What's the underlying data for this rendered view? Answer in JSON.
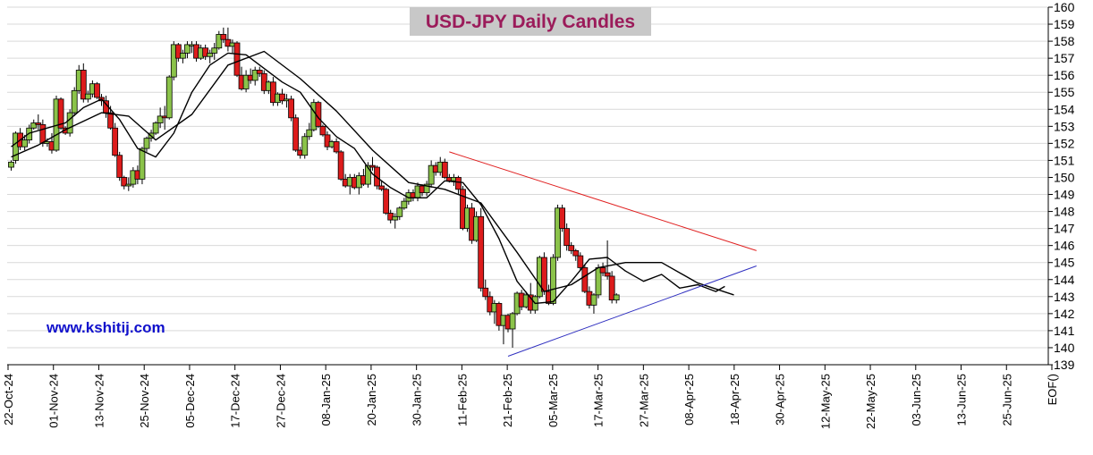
{
  "title": "USD-JPY Daily Candles",
  "watermark": "www.kshitij.com",
  "colors": {
    "up_candle": "#8bc34a",
    "down_candle": "#dd1c1c",
    "title_text": "#9b1b5a",
    "title_bg": "#c8c8c8",
    "watermark": "#1010cc",
    "grid": "#d9d9d9",
    "resistance_line": "#e02020",
    "support_line": "#3030c0"
  },
  "chart_data": {
    "type": "candlestick",
    "title": "USD-JPY Daily Candles",
    "ylim": [
      139,
      160
    ],
    "y_ticks": [
      139,
      140,
      141,
      142,
      143,
      144,
      145,
      146,
      147,
      148,
      149,
      150,
      151,
      152,
      153,
      154,
      155,
      156,
      157,
      158,
      159,
      160
    ],
    "x_tick_labels": [
      "22-Oct-24",
      "01-Nov-24",
      "13-Nov-24",
      "25-Nov-24",
      "05-Dec-24",
      "17-Dec-24",
      "27-Dec-24",
      "08-Jan-25",
      "20-Jan-25",
      "30-Jan-25",
      "11-Feb-25",
      "21-Feb-25",
      "05-Mar-25",
      "17-Mar-25",
      "27-Mar-25",
      "08-Apr-25",
      "18-Apr-25",
      "30-Apr-25",
      "12-May-25",
      "22-May-25",
      "03-Jun-25",
      "13-Jun-25",
      "25-Jun-25",
      "EOF()"
    ],
    "grid": true,
    "candles": [
      [
        150.6,
        151.0,
        150.4,
        150.9
      ],
      [
        151.0,
        152.7,
        150.8,
        152.6
      ],
      [
        152.6,
        152.9,
        151.6,
        151.8
      ],
      [
        151.8,
        152.5,
        151.6,
        152.2
      ],
      [
        152.2,
        153.1,
        152.0,
        152.9
      ],
      [
        152.9,
        153.4,
        152.8,
        153.2
      ],
      [
        153.2,
        153.7,
        152.8,
        153.1
      ],
      [
        153.1,
        153.4,
        151.8,
        152.0
      ],
      [
        152.0,
        152.3,
        151.8,
        152.1
      ],
      [
        152.1,
        152.6,
        151.4,
        151.6
      ],
      [
        151.6,
        154.8,
        151.5,
        154.6
      ],
      [
        154.6,
        154.7,
        152.8,
        152.9
      ],
      [
        152.9,
        153.0,
        152.5,
        152.6
      ],
      [
        152.6,
        154.0,
        152.4,
        153.8
      ],
      [
        153.8,
        155.3,
        153.6,
        155.1
      ],
      [
        155.1,
        156.6,
        154.9,
        156.3
      ],
      [
        156.3,
        156.7,
        154.4,
        154.6
      ],
      [
        154.6,
        155.1,
        154.4,
        154.9
      ],
      [
        154.9,
        155.7,
        154.7,
        155.5
      ],
      [
        155.5,
        155.6,
        154.6,
        154.7
      ],
      [
        154.7,
        154.9,
        154.2,
        154.5
      ],
      [
        154.5,
        154.8,
        153.5,
        153.8
      ],
      [
        153.8,
        154.2,
        152.8,
        152.9
      ],
      [
        152.9,
        153.2,
        151.2,
        151.3
      ],
      [
        151.3,
        151.5,
        149.8,
        150.0
      ],
      [
        150.0,
        150.1,
        149.3,
        149.5
      ],
      [
        149.5,
        150.0,
        149.2,
        149.6
      ],
      [
        149.6,
        150.6,
        149.4,
        150.4
      ],
      [
        150.4,
        150.7,
        149.6,
        149.9
      ],
      [
        149.9,
        151.8,
        149.6,
        151.7
      ],
      [
        151.7,
        152.4,
        151.5,
        152.3
      ],
      [
        152.3,
        152.8,
        152.1,
        152.6
      ],
      [
        152.6,
        153.3,
        152.5,
        153.2
      ],
      [
        153.2,
        154.1,
        152.9,
        153.6
      ],
      [
        153.6,
        154.2,
        152.8,
        153.5
      ],
      [
        153.5,
        156.0,
        153.4,
        155.9
      ],
      [
        155.9,
        158.0,
        155.7,
        157.8
      ],
      [
        157.8,
        157.9,
        156.8,
        157.0
      ],
      [
        157.0,
        157.5,
        156.7,
        157.3
      ],
      [
        157.3,
        158.0,
        157.0,
        157.8
      ],
      [
        157.8,
        158.0,
        157.3,
        157.8
      ],
      [
        157.8,
        158.0,
        156.8,
        157.0
      ],
      [
        157.0,
        157.8,
        156.9,
        157.6
      ],
      [
        157.6,
        157.8,
        156.9,
        157.1
      ],
      [
        157.1,
        157.5,
        156.7,
        157.3
      ],
      [
        157.3,
        157.9,
        156.9,
        157.6
      ],
      [
        157.6,
        158.6,
        157.5,
        158.4
      ],
      [
        158.4,
        158.8,
        157.9,
        158.1
      ],
      [
        158.1,
        158.8,
        157.4,
        157.7
      ],
      [
        157.7,
        158.1,
        157.3,
        157.9
      ],
      [
        157.9,
        158.0,
        155.9,
        156.0
      ],
      [
        156.0,
        156.5,
        155.1,
        155.2
      ],
      [
        155.2,
        156.3,
        155.0,
        156.0
      ],
      [
        156.0,
        156.4,
        155.5,
        155.7
      ],
      [
        155.7,
        156.5,
        155.4,
        156.3
      ],
      [
        156.3,
        156.5,
        155.9,
        156.1
      ],
      [
        156.1,
        156.3,
        154.9,
        155.1
      ],
      [
        155.1,
        155.7,
        154.9,
        155.6
      ],
      [
        155.6,
        155.9,
        154.2,
        154.4
      ],
      [
        154.4,
        155.0,
        154.2,
        154.9
      ],
      [
        154.9,
        155.2,
        154.3,
        154.5
      ],
      [
        154.5,
        154.9,
        154.1,
        154.6
      ],
      [
        154.6,
        154.8,
        153.3,
        153.5
      ],
      [
        153.5,
        153.7,
        151.5,
        151.6
      ],
      [
        151.6,
        151.8,
        151.1,
        151.3
      ],
      [
        151.3,
        152.6,
        151.1,
        152.4
      ],
      [
        152.4,
        153.2,
        152.2,
        152.8
      ],
      [
        152.8,
        154.6,
        152.7,
        154.4
      ],
      [
        154.4,
        154.5,
        152.9,
        153.0
      ],
      [
        153.0,
        153.1,
        152.4,
        152.5
      ],
      [
        152.5,
        152.7,
        151.6,
        151.8
      ],
      [
        151.8,
        152.2,
        151.7,
        152.1
      ],
      [
        152.1,
        152.3,
        151.4,
        151.5
      ],
      [
        151.5,
        151.6,
        149.8,
        149.9
      ],
      [
        149.9,
        150.2,
        149.4,
        149.5
      ],
      [
        149.5,
        150.2,
        149.0,
        150.0
      ],
      [
        150.0,
        150.2,
        149.3,
        149.4
      ],
      [
        149.4,
        150.3,
        149.0,
        150.1
      ],
      [
        150.1,
        150.5,
        149.5,
        149.6
      ],
      [
        149.6,
        150.9,
        149.4,
        150.7
      ],
      [
        150.7,
        151.2,
        150.4,
        150.6
      ],
      [
        150.6,
        150.7,
        149.3,
        149.5
      ],
      [
        149.5,
        149.8,
        149.2,
        149.3
      ],
      [
        149.3,
        149.4,
        147.8,
        147.9
      ],
      [
        147.9,
        148.1,
        147.3,
        147.5
      ],
      [
        147.5,
        147.9,
        147.0,
        147.7
      ],
      [
        147.7,
        148.3,
        147.5,
        148.2
      ],
      [
        148.2,
        148.8,
        148.1,
        148.6
      ],
      [
        148.6,
        149.3,
        148.4,
        149.1
      ],
      [
        149.1,
        149.3,
        148.6,
        148.8
      ],
      [
        148.8,
        149.7,
        148.6,
        149.5
      ],
      [
        149.5,
        149.6,
        148.9,
        149.1
      ],
      [
        149.1,
        149.8,
        148.9,
        149.6
      ],
      [
        149.6,
        151.0,
        149.4,
        150.7
      ],
      [
        150.7,
        150.9,
        150.1,
        150.3
      ],
      [
        150.3,
        151.2,
        150.1,
        150.9
      ],
      [
        150.9,
        151.1,
        149.9,
        150.0
      ],
      [
        150.0,
        150.2,
        149.7,
        149.8
      ],
      [
        149.8,
        150.2,
        149.5,
        150.0
      ],
      [
        150.0,
        150.1,
        149.0,
        149.3
      ],
      [
        149.3,
        149.5,
        146.9,
        147.0
      ],
      [
        147.0,
        148.4,
        146.8,
        148.2
      ],
      [
        148.2,
        148.5,
        146.1,
        146.3
      ],
      [
        146.3,
        148.0,
        146.2,
        147.7
      ],
      [
        147.7,
        148.2,
        143.3,
        143.5
      ],
      [
        143.5,
        144.0,
        142.8,
        143.0
      ],
      [
        143.0,
        143.3,
        141.9,
        142.1
      ],
      [
        142.1,
        142.8,
        141.4,
        142.6
      ],
      [
        142.6,
        142.7,
        141.0,
        141.3
      ],
      [
        141.3,
        141.9,
        140.2,
        141.9
      ],
      [
        141.9,
        142.0,
        140.9,
        141.1
      ],
      [
        141.1,
        142.1,
        140.0,
        142.0
      ],
      [
        142.0,
        143.3,
        141.9,
        143.2
      ],
      [
        143.2,
        143.4,
        142.2,
        142.4
      ],
      [
        142.4,
        143.3,
        142.3,
        143.1
      ],
      [
        143.1,
        143.8,
        142.0,
        142.2
      ],
      [
        142.2,
        143.1,
        142.0,
        143.0
      ],
      [
        143.0,
        145.4,
        142.9,
        145.3
      ],
      [
        145.3,
        145.6,
        143.1,
        143.3
      ],
      [
        143.3,
        143.7,
        142.5,
        142.6
      ],
      [
        142.6,
        145.5,
        142.5,
        145.3
      ],
      [
        145.3,
        148.4,
        145.1,
        148.2
      ],
      [
        148.2,
        148.4,
        146.8,
        147.0
      ],
      [
        147.0,
        147.3,
        145.7,
        146.0
      ],
      [
        146.0,
        146.2,
        145.5,
        145.7
      ],
      [
        145.7,
        145.8,
        145.1,
        145.4
      ],
      [
        145.4,
        145.6,
        144.5,
        144.7
      ],
      [
        144.7,
        144.9,
        143.2,
        143.3
      ],
      [
        143.3,
        143.6,
        142.3,
        142.5
      ],
      [
        142.5,
        143.2,
        142.0,
        143.1
      ],
      [
        143.1,
        144.9,
        142.9,
        144.7
      ],
      [
        144.7,
        145.0,
        144.2,
        144.4
      ],
      [
        144.4,
        146.3,
        144.0,
        144.2
      ],
      [
        144.2,
        144.5,
        142.6,
        142.8
      ],
      [
        142.8,
        143.2,
        142.6,
        143.1
      ]
    ],
    "moving_average_fast": [
      [
        0,
        151.8
      ],
      [
        4,
        152.6
      ],
      [
        8,
        152.9
      ],
      [
        12,
        153.2
      ],
      [
        16,
        154.1
      ],
      [
        20,
        154.6
      ],
      [
        24,
        153.4
      ],
      [
        28,
        151.7
      ],
      [
        32,
        151.2
      ],
      [
        36,
        152.6
      ],
      [
        40,
        155.0
      ],
      [
        44,
        156.6
      ],
      [
        48,
        157.3
      ],
      [
        52,
        157.2
      ],
      [
        56,
        156.4
      ],
      [
        60,
        155.6
      ],
      [
        64,
        155.0
      ],
      [
        68,
        153.5
      ],
      [
        72,
        152.4
      ],
      [
        76,
        151.7
      ],
      [
        80,
        150.2
      ],
      [
        84,
        149.4
      ],
      [
        88,
        148.8
      ],
      [
        92,
        148.8
      ],
      [
        96,
        149.8
      ],
      [
        100,
        149.7
      ],
      [
        104,
        148.4
      ],
      [
        108,
        146.4
      ],
      [
        112,
        143.9
      ],
      [
        116,
        142.6
      ],
      [
        120,
        142.7
      ],
      [
        124,
        143.9
      ],
      [
        128,
        145.2
      ],
      [
        132,
        145.3
      ],
      [
        136,
        144.5
      ],
      [
        140,
        143.9
      ],
      [
        144,
        144.3
      ],
      [
        148,
        143.5
      ],
      [
        152,
        143.7
      ],
      [
        156,
        143.3
      ],
      [
        158,
        143.6
      ]
    ],
    "moving_average_slow": [
      [
        0,
        151.2
      ],
      [
        6,
        151.9
      ],
      [
        12,
        152.8
      ],
      [
        20,
        153.8
      ],
      [
        26,
        153.6
      ],
      [
        32,
        152.2
      ],
      [
        40,
        153.7
      ],
      [
        48,
        156.6
      ],
      [
        56,
        157.4
      ],
      [
        64,
        155.8
      ],
      [
        72,
        153.9
      ],
      [
        80,
        151.6
      ],
      [
        88,
        149.7
      ],
      [
        96,
        149.3
      ],
      [
        104,
        148.5
      ],
      [
        112,
        145.6
      ],
      [
        118,
        143.3
      ],
      [
        124,
        143.7
      ],
      [
        130,
        144.7
      ],
      [
        136,
        145.0
      ],
      [
        144,
        145.0
      ],
      [
        152,
        143.8
      ],
      [
        160,
        143.1
      ]
    ],
    "resistance_line": {
      "from": [
        97,
        151.5
      ],
      "to": [
        165,
        145.7
      ]
    },
    "support_line": {
      "from": [
        110,
        139.5
      ],
      "to": [
        165,
        144.8
      ]
    }
  }
}
